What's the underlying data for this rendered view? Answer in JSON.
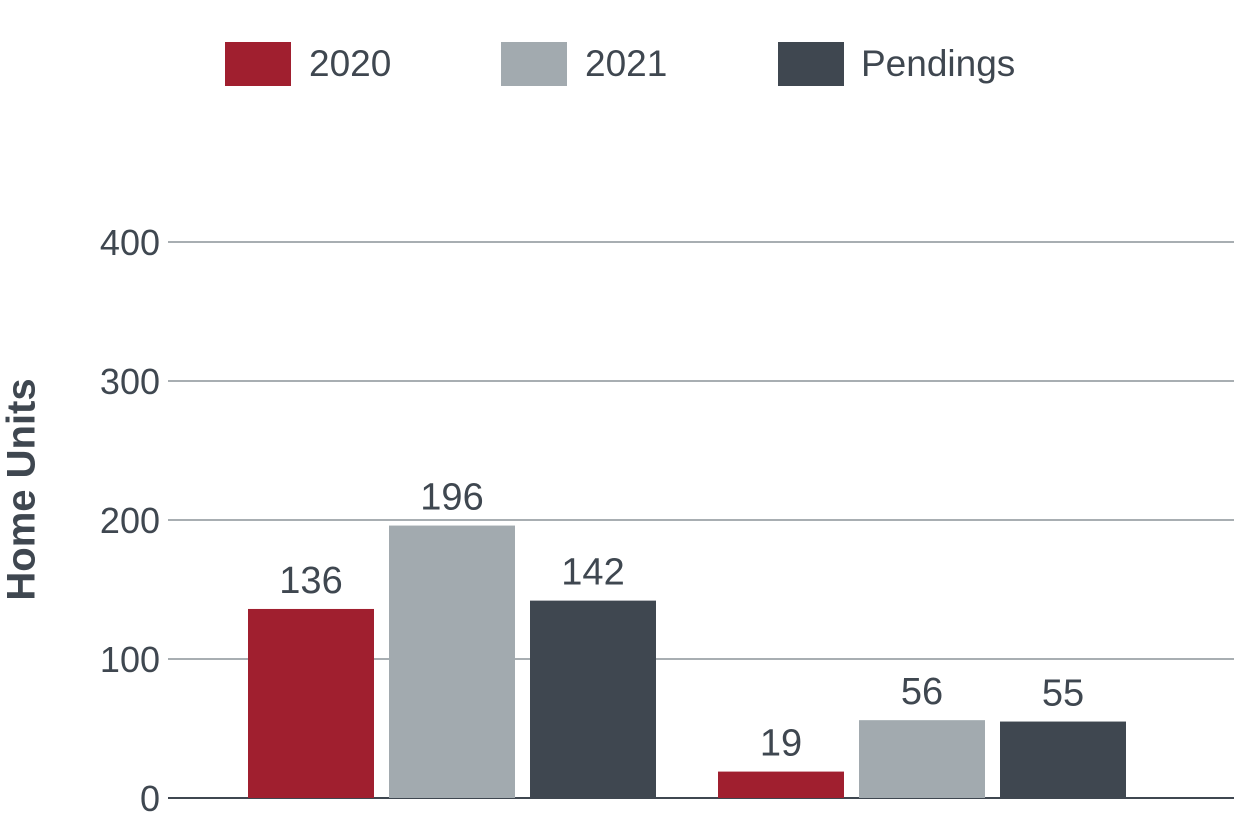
{
  "chart_data": {
    "type": "bar",
    "categories": [
      "",
      ""
    ],
    "series": [
      {
        "name": "2020",
        "color": "#a01f2f",
        "values": [
          136,
          19
        ]
      },
      {
        "name": "2021",
        "color": "#a2aaaf",
        "values": [
          196,
          56
        ]
      },
      {
        "name": "Pendings",
        "color": "#3f4750",
        "values": [
          142,
          55
        ]
      }
    ],
    "ylabel": "Home Units",
    "xlabel": "",
    "ylim": [
      0,
      400
    ],
    "yticks": [
      "0",
      "100",
      "200",
      "300",
      "400"
    ],
    "grid": true,
    "legend_position": "top"
  }
}
